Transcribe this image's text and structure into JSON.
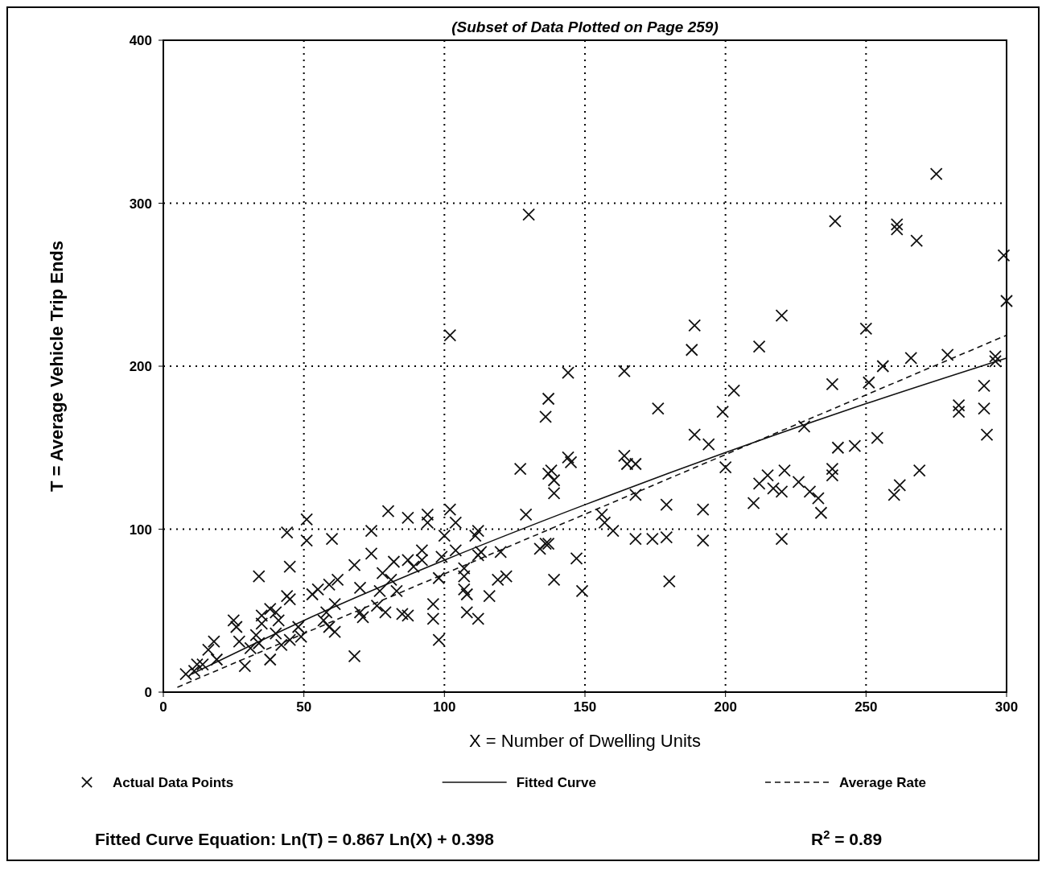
{
  "chart_data": {
    "type": "scatter",
    "title": "(Subset of Data Plotted on Page 259)",
    "xlabel": "X = Number of Dwelling Units",
    "ylabel": "T = Average Vehicle Trip Ends",
    "xlim": [
      0,
      300
    ],
    "ylim": [
      0,
      400
    ],
    "xticks": [
      0,
      50,
      100,
      150,
      200,
      250,
      300
    ],
    "yticks": [
      0,
      100,
      200,
      300,
      400
    ],
    "grid": true,
    "legend": "bottom",
    "marker": "cross",
    "series": [
      {
        "name": "Actual Data Points",
        "color": "#111111",
        "x": [
          130,
          275,
          239,
          261,
          261,
          268,
          299,
          300,
          220,
          189,
          250,
          102,
          188,
          212,
          279,
          266,
          256,
          296,
          296,
          251,
          203,
          199,
          144,
          164,
          127,
          137,
          136,
          176,
          238,
          292,
          283,
          283,
          292,
          293,
          189,
          194,
          228,
          246,
          240,
          254,
          238,
          238,
          269,
          262,
          260,
          200,
          212,
          215,
          217,
          220,
          221,
          226,
          230,
          233,
          234,
          210,
          192,
          192,
          220,
          179,
          179,
          180,
          174,
          168,
          168,
          164,
          165,
          168,
          144,
          145,
          138,
          139,
          139,
          137,
          129,
          160,
          156,
          157,
          147,
          149,
          139,
          136,
          137,
          134,
          111,
          112,
          102,
          94,
          94,
          104,
          87,
          80,
          100,
          99,
          104,
          107,
          107,
          107,
          108,
          112,
          113,
          120,
          119,
          122,
          116,
          112,
          108,
          98,
          96,
          96,
          98,
          92,
          92,
          87,
          89,
          82,
          81,
          83,
          78,
          74,
          74,
          77,
          76,
          71,
          70,
          70,
          68,
          68,
          79,
          85,
          87,
          60,
          51,
          51,
          44,
          34,
          45,
          53,
          55,
          44,
          38,
          35,
          48,
          49,
          45,
          42,
          38,
          31,
          29,
          27,
          25,
          26,
          18,
          16,
          19,
          12,
          11,
          14,
          8,
          58,
          61,
          57,
          59,
          61,
          59,
          62,
          41,
          40,
          33,
          45,
          35,
          40,
          34
        ],
        "values": [
          293,
          318,
          289,
          287,
          284,
          277,
          268,
          240,
          231,
          225,
          223,
          219,
          210,
          212,
          207,
          205,
          200,
          206,
          203,
          190,
          185,
          172,
          196,
          197,
          137,
          180,
          169,
          174,
          189,
          188,
          176,
          172,
          174,
          158,
          158,
          152,
          163,
          151,
          150,
          156,
          137,
          133,
          136,
          127,
          121,
          138,
          128,
          133,
          125,
          123,
          136,
          129,
          123,
          119,
          110,
          116,
          112,
          93,
          94,
          115,
          95,
          68,
          94,
          94,
          121,
          145,
          140,
          140,
          144,
          141,
          136,
          130,
          122,
          134,
          109,
          99,
          109,
          104,
          82,
          62,
          69,
          91,
          91,
          88,
          96,
          99,
          112,
          109,
          104,
          104,
          107,
          111,
          96,
          83,
          87,
          76,
          71,
          63,
          60,
          84,
          86,
          86,
          69,
          71,
          59,
          45,
          49,
          32,
          54,
          45,
          70,
          87,
          81,
          81,
          77,
          80,
          69,
          62,
          73,
          85,
          99,
          62,
          53,
          46,
          49,
          64,
          22,
          78,
          49,
          48,
          47,
          94,
          106,
          93,
          98,
          71,
          77,
          60,
          63,
          59,
          51,
          47,
          40,
          34,
          32,
          29,
          20,
          27,
          16,
          31,
          44,
          40,
          31,
          26,
          20,
          17,
          13,
          17,
          11,
          49,
          54,
          44,
          40,
          37,
          66,
          69,
          44,
          36,
          35,
          57,
          42,
          49,
          30
        ]
      },
      {
        "name": "Fitted Curve",
        "type": "line",
        "marker": "none",
        "color": "#111111",
        "line_style": "solid",
        "x": [
          10,
          50,
          100,
          150,
          200,
          250,
          300
        ],
        "values": [
          11,
          44,
          81,
          115,
          147,
          177,
          205
        ]
      },
      {
        "name": "Average Rate",
        "type": "line",
        "marker": "none",
        "color": "#111111",
        "line_style": "dashed",
        "x": [
          5,
          300
        ],
        "values": [
          3,
          219
        ]
      }
    ],
    "annotations": [
      "Fitted Curve Equation:  Ln(T) = 0.867 Ln(X) + 0.398",
      "R$^{2}$ = 0.89"
    ]
  }
}
